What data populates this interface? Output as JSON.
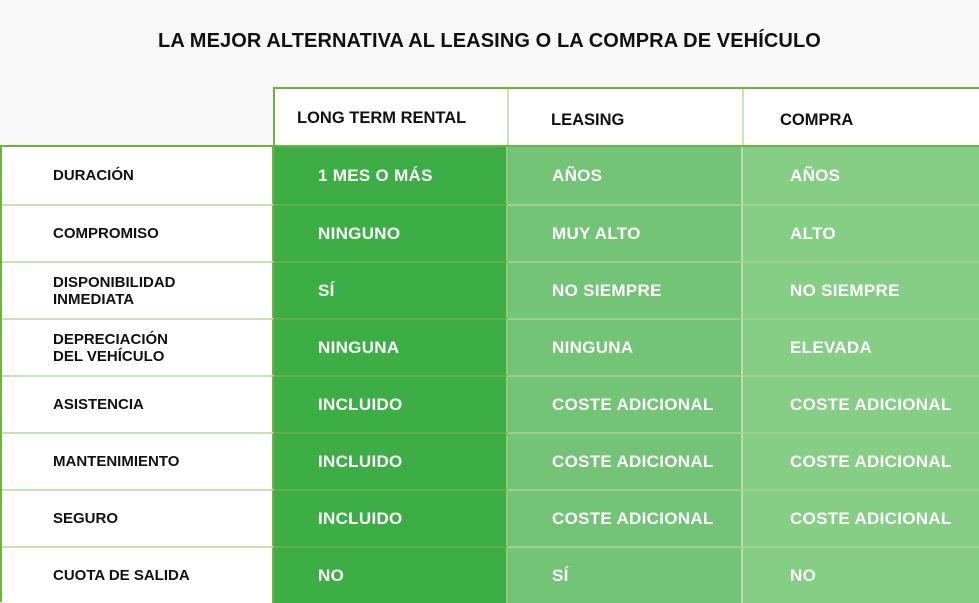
{
  "title": "LA MEJOR ALTERNATIVA AL LEASING O LA COMPRA DE VEHÍCULO",
  "columns": [
    "LONG TERM RENTAL",
    "LEASING",
    "COMPRA"
  ],
  "rows": [
    {
      "label_l1": "DURACIÓN",
      "label_l2": "",
      "ltr": "1 MES O MÁS",
      "leasing": "AÑOS",
      "compra": "AÑOS"
    },
    {
      "label_l1": "COMPROMISO",
      "label_l2": "",
      "ltr": "NINGUNO",
      "leasing": "MUY ALTO",
      "compra": "ALTO"
    },
    {
      "label_l1": "DISPONIBILIDAD",
      "label_l2": "INMEDIATA",
      "ltr": "SÍ",
      "leasing": "NO SIEMPRE",
      "compra": "NO SIEMPRE"
    },
    {
      "label_l1": "DEPRECIACIÓN",
      "label_l2": "DEL VEHÍCULO",
      "ltr": "NINGUNA",
      "leasing": "NINGUNA",
      "compra": "ELEVADA"
    },
    {
      "label_l1": "ASISTENCIA",
      "label_l2": "",
      "ltr": "INCLUIDO",
      "leasing": "COSTE ADICIONAL",
      "compra": "COSTE ADICIONAL"
    },
    {
      "label_l1": "MANTENIMIENTO",
      "label_l2": "",
      "ltr": "INCLUIDO",
      "leasing": "COSTE ADICIONAL",
      "compra": "COSTE ADICIONAL"
    },
    {
      "label_l1": "SEGURO",
      "label_l2": "",
      "ltr": "INCLUIDO",
      "leasing": "COSTE ADICIONAL",
      "compra": "COSTE ADICIONAL"
    },
    {
      "label_l1": "CUOTA DE SALIDA",
      "label_l2": "",
      "ltr": "NO",
      "leasing": "SÍ",
      "compra": "NO"
    }
  ]
}
